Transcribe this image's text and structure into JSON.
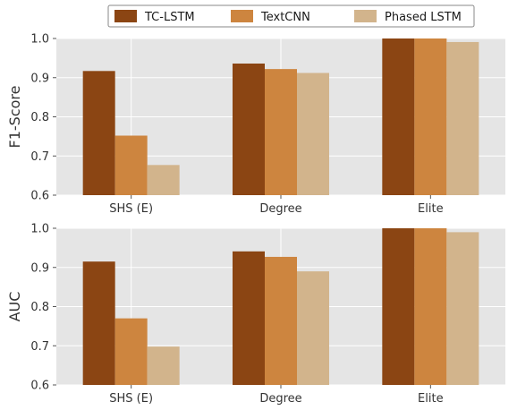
{
  "legend": {
    "placement": "top-center",
    "entries": [
      {
        "label": "TC-LSTM",
        "color": "#8b4513"
      },
      {
        "label": "TextCNN",
        "color": "#cd853f"
      },
      {
        "label": "Phased LSTM",
        "color": "#d2b48c"
      }
    ]
  },
  "chart_data": [
    {
      "type": "bar",
      "title": "",
      "xlabel": "",
      "ylabel": "F1-Score",
      "categories": [
        "SHS (E)",
        "Degree",
        "Elite"
      ],
      "ylim": [
        0.6,
        1.0
      ],
      "yticks": [
        "0.6",
        "0.7",
        "0.8",
        "0.9",
        "1.0"
      ],
      "grid": true,
      "series": [
        {
          "name": "TC-LSTM",
          "color": "#8b4513",
          "values": [
            0.917,
            0.936,
            1.0
          ]
        },
        {
          "name": "TextCNN",
          "color": "#cd853f",
          "values": [
            0.752,
            0.922,
            1.0
          ]
        },
        {
          "name": "Phased LSTM",
          "color": "#d2b48c",
          "values": [
            0.677,
            0.912,
            0.991
          ]
        }
      ]
    },
    {
      "type": "bar",
      "title": "",
      "xlabel": "",
      "ylabel": "AUC",
      "categories": [
        "SHS (E)",
        "Degree",
        "Elite"
      ],
      "ylim": [
        0.6,
        1.0
      ],
      "yticks": [
        "0.6",
        "0.7",
        "0.8",
        "0.9",
        "1.0"
      ],
      "grid": true,
      "series": [
        {
          "name": "TC-LSTM",
          "color": "#8b4513",
          "values": [
            0.915,
            0.941,
            1.0
          ]
        },
        {
          "name": "TextCNN",
          "color": "#cd853f",
          "values": [
            0.77,
            0.927,
            1.0
          ]
        },
        {
          "name": "Phased LSTM",
          "color": "#d2b48c",
          "values": [
            0.698,
            0.89,
            0.99
          ]
        }
      ]
    }
  ]
}
